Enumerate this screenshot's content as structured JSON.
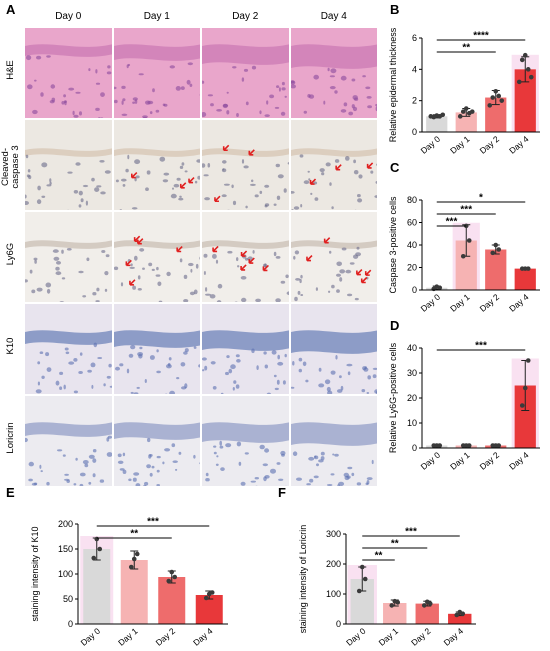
{
  "panels": {
    "A": "A",
    "B": "B",
    "C": "C",
    "D": "D",
    "E": "E",
    "F": "F"
  },
  "micrograph": {
    "columns": [
      "Day 0",
      "Day 1",
      "Day 2",
      "Day 4"
    ],
    "rows": [
      "H&E",
      "Cleaved-\ncaspase 3",
      "Ly6G",
      "K10",
      "Loricrin"
    ],
    "row_label_lines": [
      [
        "H&E"
      ],
      [
        "Cleaved-",
        "caspase 3"
      ],
      [
        "Ly6G"
      ],
      [
        "K10"
      ],
      [
        "Loricrin"
      ]
    ]
  },
  "colors": {
    "day0": "#d9d9d9",
    "day1": "#f6b3b3",
    "day2": "#ee6c6c",
    "day4": "#e8383a",
    "highlight": "#f4c9e6"
  },
  "chart_data": [
    {
      "id": "B",
      "type": "bar",
      "categories": [
        "Day 0",
        "Day 1",
        "Day 2",
        "Day 4"
      ],
      "values": [
        1.0,
        1.25,
        2.2,
        4.0
      ],
      "errors": [
        0.1,
        0.25,
        0.45,
        0.8
      ],
      "points": [
        [
          1.0,
          0.95,
          1.05,
          1.0,
          1.1
        ],
        [
          1.0,
          1.3,
          1.5,
          1.2,
          1.3
        ],
        [
          1.7,
          2.2,
          2.6,
          2.3,
          2.0
        ],
        [
          3.2,
          4.6,
          4.9,
          4.0,
          3.5
        ]
      ],
      "ylabel": "Relative epidermal thickness",
      "ylim": [
        0,
        6
      ],
      "yticks": [
        0,
        2,
        4,
        6
      ],
      "significance": [
        {
          "from": 0,
          "to": 2,
          "label": "**"
        },
        {
          "from": 0,
          "to": 3,
          "label": "****"
        }
      ]
    },
    {
      "id": "C",
      "type": "bar",
      "categories": [
        "Day 0",
        "Day 1",
        "Day 2",
        "Day 4"
      ],
      "values": [
        2,
        44,
        36,
        19
      ],
      "errors": [
        1.5,
        14,
        4,
        1
      ],
      "points": [
        [
          1,
          3,
          2
        ],
        [
          30,
          57,
          44
        ],
        [
          33,
          40,
          36
        ],
        [
          19,
          19,
          19
        ]
      ],
      "ylabel": "Caspase 3-positive cells",
      "ylim": [
        0,
        80
      ],
      "yticks": [
        0,
        20,
        40,
        60,
        80
      ],
      "significance": [
        {
          "from": 0,
          "to": 1,
          "label": "***"
        },
        {
          "from": 0,
          "to": 2,
          "label": "***"
        },
        {
          "from": 0,
          "to": 3,
          "label": "*"
        }
      ]
    },
    {
      "id": "D",
      "type": "bar",
      "categories": [
        "Day 0",
        "Day 1",
        "Day 2",
        "Day 4"
      ],
      "values": [
        1,
        1,
        1,
        25
      ],
      "errors": [
        0.5,
        0.5,
        0.5,
        10
      ],
      "points": [
        [
          1,
          1,
          1
        ],
        [
          1,
          1,
          1
        ],
        [
          1,
          1,
          1
        ],
        [
          17,
          24,
          35
        ]
      ],
      "ylabel": "Relative Ly6G-positive cells",
      "ylim": [
        0,
        40
      ],
      "yticks": [
        0,
        10,
        20,
        30,
        40
      ],
      "significance": [
        {
          "from": 0,
          "to": 3,
          "label": "***"
        }
      ]
    },
    {
      "id": "E",
      "type": "bar",
      "categories": [
        "Day 0",
        "Day 1",
        "Day 2",
        "Day 4"
      ],
      "values": [
        150,
        128,
        94,
        58
      ],
      "errors": [
        22,
        18,
        12,
        8
      ],
      "points": [
        [
          132,
          170,
          150
        ],
        [
          114,
          130,
          140
        ],
        [
          86,
          104,
          94
        ],
        [
          52,
          60,
          63
        ]
      ],
      "ylabel": "staining intensity of K10",
      "ylim": [
        0,
        200
      ],
      "yticks": [
        0,
        50,
        100,
        150,
        200
      ],
      "significance": [
        {
          "from": 0,
          "to": 2,
          "label": "**"
        },
        {
          "from": 0,
          "to": 3,
          "label": "***"
        }
      ]
    },
    {
      "id": "F",
      "type": "bar",
      "categories": [
        "Day 0",
        "Day 1",
        "Day 2",
        "Day 4"
      ],
      "values": [
        150,
        70,
        68,
        34
      ],
      "errors": [
        40,
        10,
        8,
        6
      ],
      "points": [
        [
          110,
          190,
          150
        ],
        [
          62,
          76,
          72
        ],
        [
          62,
          74,
          68
        ],
        [
          30,
          40,
          34
        ]
      ],
      "ylabel": "staining intensity of Loricrin",
      "ylim": [
        0,
        300
      ],
      "yticks": [
        0,
        100,
        200,
        300
      ],
      "significance": [
        {
          "from": 0,
          "to": 1,
          "label": "**"
        },
        {
          "from": 0,
          "to": 2,
          "label": "**"
        },
        {
          "from": 0,
          "to": 3,
          "label": "***"
        }
      ]
    }
  ]
}
